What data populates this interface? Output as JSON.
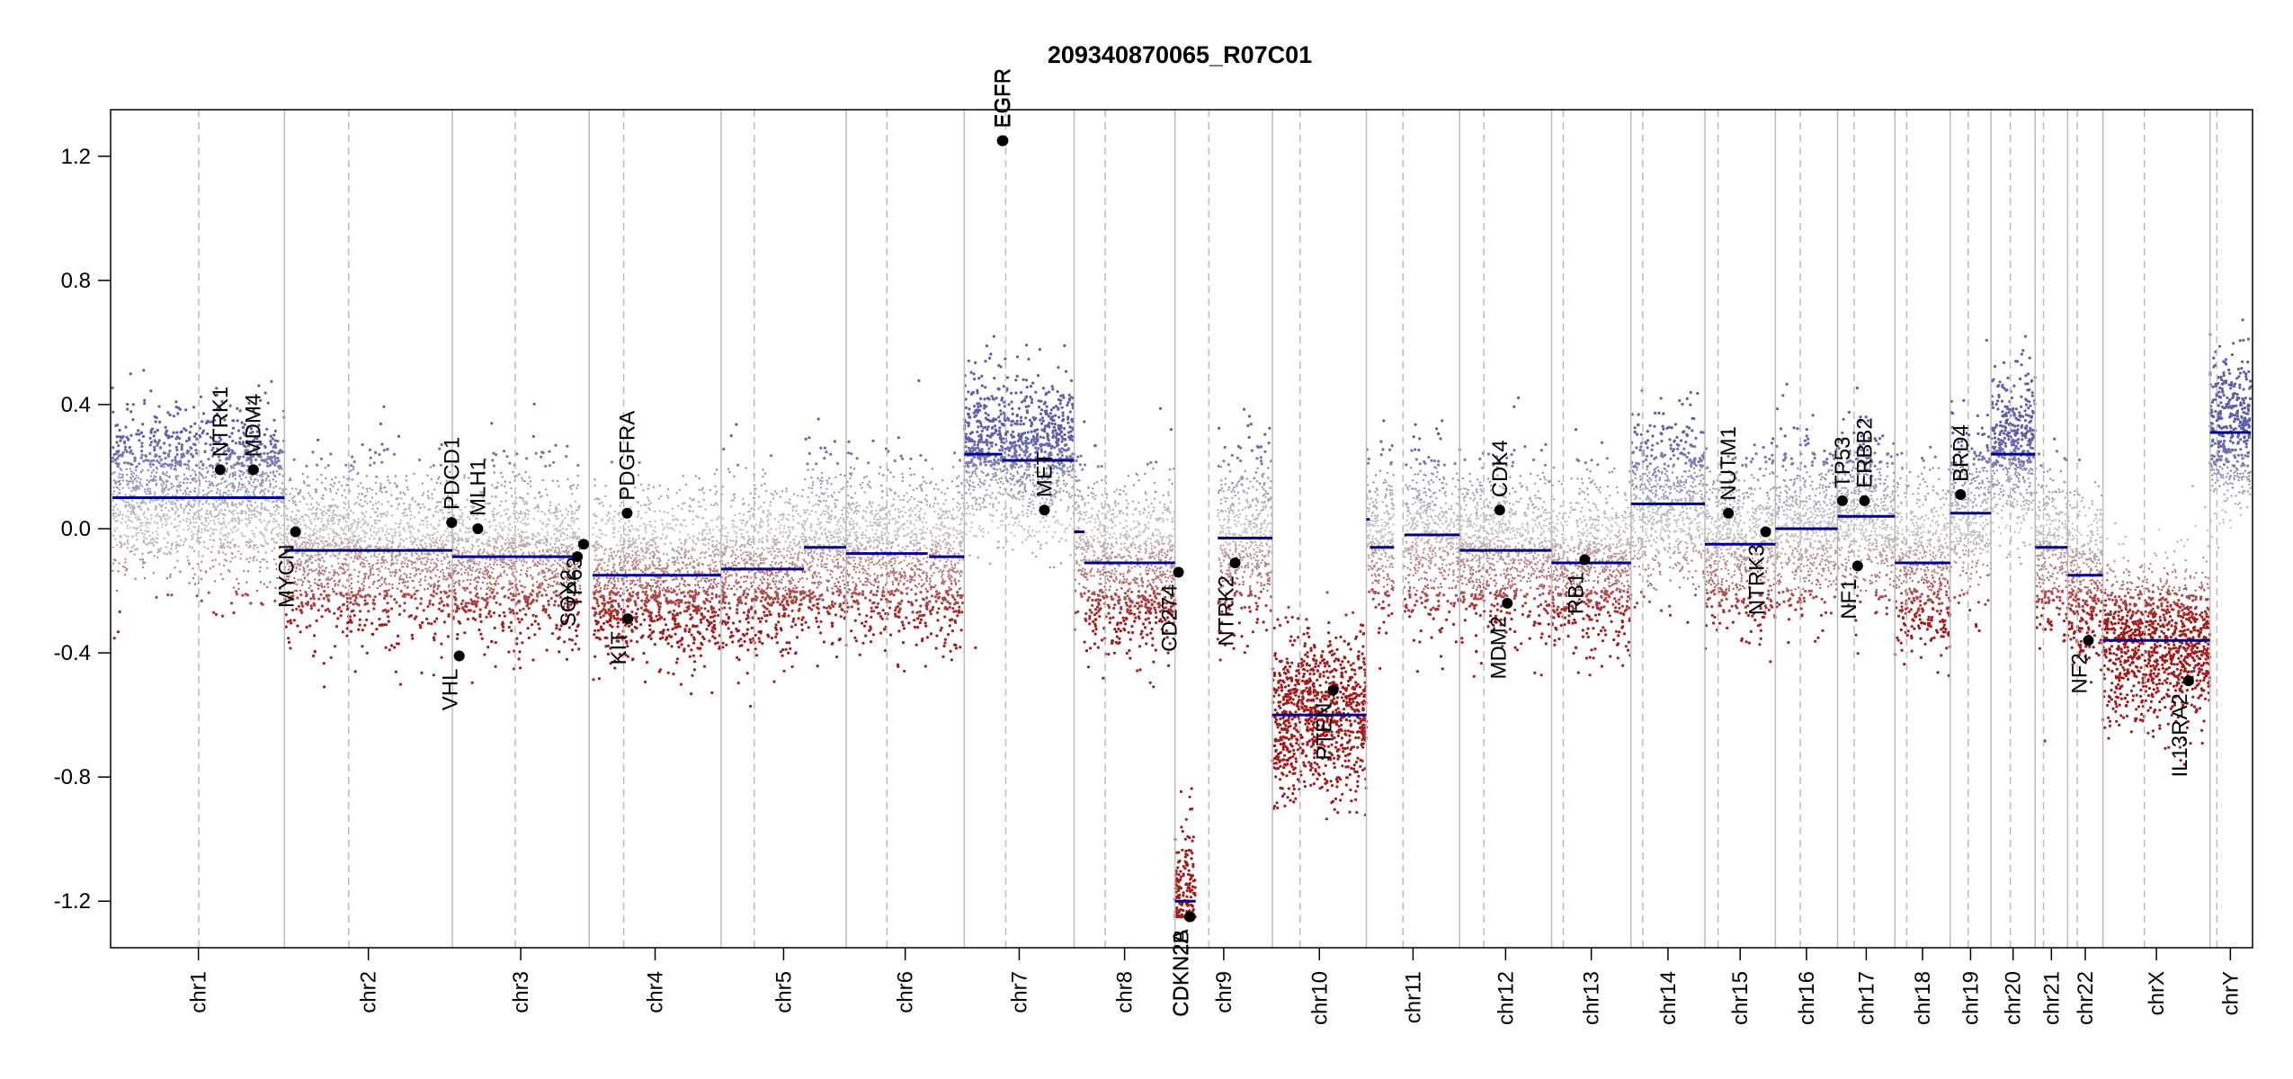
{
  "chart_data": {
    "type": "scatter",
    "title": "209340870065_R07C01",
    "xlabel": "",
    "ylabel": "",
    "ylim": [
      -1.35,
      1.35
    ],
    "yticks": [
      "1.2",
      "0.8",
      "0.4",
      "0.0",
      "-0.4",
      "-0.8",
      "-1.2"
    ],
    "ytick_values": [
      1.2,
      0.8,
      0.4,
      0.0,
      -0.4,
      -0.8,
      -1.2
    ],
    "grid": false,
    "legend": "none",
    "colors": {
      "gain": "#5e5eaa",
      "neutral": "#c8c8c8",
      "loss": "#a11d1d",
      "segment": "#00008b",
      "gene": "#000000"
    },
    "chromosomes": [
      {
        "name": "chr1",
        "length": 249,
        "centromere": 125
      },
      {
        "name": "chr2",
        "length": 243,
        "centromere": 93
      },
      {
        "name": "chr3",
        "length": 198,
        "centromere": 91
      },
      {
        "name": "chr4",
        "length": 191,
        "centromere": 50
      },
      {
        "name": "chr5",
        "length": 181,
        "centromere": 48
      },
      {
        "name": "chr6",
        "length": 171,
        "centromere": 59
      },
      {
        "name": "chr7",
        "length": 159,
        "centromere": 60
      },
      {
        "name": "chr8",
        "length": 146,
        "centromere": 45
      },
      {
        "name": "chr9",
        "length": 141,
        "centromere": 49
      },
      {
        "name": "chr10",
        "length": 136,
        "centromere": 40
      },
      {
        "name": "chr11",
        "length": 135,
        "centromere": 53
      },
      {
        "name": "chr12",
        "length": 133,
        "centromere": 35
      },
      {
        "name": "chr13",
        "length": 115,
        "centromere": 17
      },
      {
        "name": "chr14",
        "length": 107,
        "centromere": 17
      },
      {
        "name": "chr15",
        "length": 102,
        "centromere": 19
      },
      {
        "name": "chr16",
        "length": 90,
        "centromere": 36
      },
      {
        "name": "chr17",
        "length": 83,
        "centromere": 24
      },
      {
        "name": "chr18",
        "length": 80,
        "centromere": 17
      },
      {
        "name": "chr19",
        "length": 59,
        "centromere": 26
      },
      {
        "name": "chr20",
        "length": 64,
        "centromere": 28
      },
      {
        "name": "chr21",
        "length": 47,
        "centromere": 12
      },
      {
        "name": "chr22",
        "length": 51,
        "centromere": 14
      },
      {
        "name": "chrX",
        "length": 155,
        "centromere": 60
      },
      {
        "name": "chrY",
        "length": 59,
        "centromere": 10
      }
    ],
    "segments": [
      {
        "chr": "chr1",
        "start": 0,
        "end": 249,
        "value": 0.1
      },
      {
        "chr": "chr2",
        "start": 0,
        "end": 243,
        "value": -0.07
      },
      {
        "chr": "chr3",
        "start": 0,
        "end": 185,
        "value": -0.09
      },
      {
        "chr": "chr4",
        "start": 5,
        "end": 191,
        "value": -0.15
      },
      {
        "chr": "chr5",
        "start": 0,
        "end": 120,
        "value": -0.13
      },
      {
        "chr": "chr5",
        "start": 120,
        "end": 181,
        "value": -0.06
      },
      {
        "chr": "chr6",
        "start": 0,
        "end": 118,
        "value": -0.08
      },
      {
        "chr": "chr6",
        "start": 120,
        "end": 171,
        "value": -0.09
      },
      {
        "chr": "chr7",
        "start": 0,
        "end": 55,
        "value": 0.24
      },
      {
        "chr": "chr7",
        "start": 55,
        "end": 159,
        "value": 0.22
      },
      {
        "chr": "chr8",
        "start": 0,
        "end": 15,
        "value": -0.01
      },
      {
        "chr": "chr8",
        "start": 15,
        "end": 146,
        "value": -0.11
      },
      {
        "chr": "chr9",
        "start": 0,
        "end": 30,
        "value": -1.2
      },
      {
        "chr": "chr9",
        "start": 62,
        "end": 141,
        "value": -0.03
      },
      {
        "chr": "chr10",
        "start": 0,
        "end": 136,
        "value": -0.6
      },
      {
        "chr": "chr11",
        "start": 0,
        "end": 5,
        "value": 0.03
      },
      {
        "chr": "chr11",
        "start": 5,
        "end": 40,
        "value": -0.06
      },
      {
        "chr": "chr11",
        "start": 55,
        "end": 135,
        "value": -0.02
      },
      {
        "chr": "chr12",
        "start": 0,
        "end": 133,
        "value": -0.07
      },
      {
        "chr": "chr13",
        "start": 0,
        "end": 115,
        "value": -0.11
      },
      {
        "chr": "chr14",
        "start": 0,
        "end": 107,
        "value": 0.08
      },
      {
        "chr": "chr15",
        "start": 0,
        "end": 102,
        "value": -0.05
      },
      {
        "chr": "chr16",
        "start": 0,
        "end": 90,
        "value": 0.0
      },
      {
        "chr": "chr17",
        "start": 0,
        "end": 83,
        "value": 0.04
      },
      {
        "chr": "chr18",
        "start": 0,
        "end": 80,
        "value": -0.11
      },
      {
        "chr": "chr19",
        "start": 0,
        "end": 59,
        "value": 0.05
      },
      {
        "chr": "chr20",
        "start": 0,
        "end": 64,
        "value": 0.24
      },
      {
        "chr": "chr21",
        "start": 0,
        "end": 47,
        "value": -0.06
      },
      {
        "chr": "chr22",
        "start": 0,
        "end": 51,
        "value": -0.15
      },
      {
        "chr": "chrX",
        "start": 0,
        "end": 155,
        "value": -0.36
      },
      {
        "chr": "chrY",
        "start": 0,
        "end": 59,
        "value": 0.31
      }
    ],
    "genes": [
      {
        "name": "NTRK1",
        "chr": "chr1",
        "pos": 156,
        "value": 0.19
      },
      {
        "name": "MDM4",
        "chr": "chr1",
        "pos": 204,
        "value": 0.19
      },
      {
        "name": "MYCN",
        "chr": "chr2",
        "pos": 16,
        "value": -0.01
      },
      {
        "name": "PDCD1",
        "chr": "chr2",
        "pos": 242,
        "value": 0.02
      },
      {
        "name": "VHL",
        "chr": "chr3",
        "pos": 10,
        "value": -0.41
      },
      {
        "name": "MLH1",
        "chr": "chr3",
        "pos": 37,
        "value": 0.0
      },
      {
        "name": "SOX2",
        "chr": "chr3",
        "pos": 181,
        "value": -0.09
      },
      {
        "name": "TP63",
        "chr": "chr3",
        "pos": 190,
        "value": -0.05
      },
      {
        "name": "PDGFRA",
        "chr": "chr4",
        "pos": 55,
        "value": 0.05
      },
      {
        "name": "KIT",
        "chr": "chr4",
        "pos": 56,
        "value": -0.29
      },
      {
        "name": "EGFR",
        "chr": "chr7",
        "pos": 55,
        "value": 1.25
      },
      {
        "name": "EGFR",
        "chr": "chr7",
        "pos": 56,
        "value": 1.25
      },
      {
        "name": "MET",
        "chr": "chr7",
        "pos": 116,
        "value": 0.06
      },
      {
        "name": "CD274",
        "chr": "chr9",
        "pos": 5,
        "value": -0.14
      },
      {
        "name": "CDKN2A",
        "chr": "chr9",
        "pos": 21,
        "value": -1.25
      },
      {
        "name": "CDKN2B",
        "chr": "chr9",
        "pos": 22,
        "value": -1.25
      },
      {
        "name": "NTRK2",
        "chr": "chr9",
        "pos": 87,
        "value": -0.11
      },
      {
        "name": "PTEN",
        "chr": "chr10",
        "pos": 88,
        "value": -0.52
      },
      {
        "name": "CDK4",
        "chr": "chr12",
        "pos": 58,
        "value": 0.06
      },
      {
        "name": "MDM2",
        "chr": "chr12",
        "pos": 69,
        "value": -0.24
      },
      {
        "name": "RB1",
        "chr": "chr13",
        "pos": 48,
        "value": -0.1
      },
      {
        "name": "NUTM1",
        "chr": "chr15",
        "pos": 34,
        "value": 0.05
      },
      {
        "name": "NTRK3",
        "chr": "chr15",
        "pos": 88,
        "value": -0.01
      },
      {
        "name": "TP53",
        "chr": "chr17",
        "pos": 7,
        "value": 0.09
      },
      {
        "name": "ERBB2",
        "chr": "chr17",
        "pos": 39,
        "value": 0.09
      },
      {
        "name": "NF1",
        "chr": "chr17",
        "pos": 29,
        "value": -0.12
      },
      {
        "name": "BRD4",
        "chr": "chr19",
        "pos": 15,
        "value": 0.11
      },
      {
        "name": "NF2",
        "chr": "chr22",
        "pos": 30,
        "value": -0.36
      },
      {
        "name": "IL13RA2",
        "chr": "chrX",
        "pos": 124,
        "value": -0.49
      }
    ]
  }
}
